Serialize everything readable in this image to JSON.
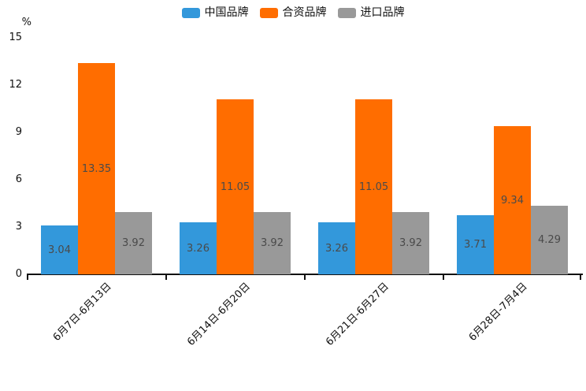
{
  "chart_data": {
    "type": "bar",
    "title": "",
    "unit_label": "%",
    "categories": [
      "6月7日-6月13日",
      "6月14日-6月20日",
      "6月21日-6月27日",
      "6月28日-7月4日"
    ],
    "series": [
      {
        "name": "中国品牌",
        "color": "#3398DB",
        "values": [
          3.04,
          3.26,
          3.26,
          3.71
        ]
      },
      {
        "name": "合资品牌",
        "color": "#FF6D00",
        "values": [
          13.35,
          11.05,
          11.05,
          9.34
        ]
      },
      {
        "name": "进口品牌",
        "color": "#999999",
        "values": [
          3.92,
          3.92,
          3.92,
          4.29
        ]
      }
    ],
    "yticks": [
      0,
      3,
      6,
      9,
      12,
      15
    ],
    "ylim": [
      0,
      15
    ],
    "xlabel": "",
    "ylabel": "%",
    "legend_position": "top",
    "grid": false,
    "value_labels": "inside-center",
    "value_decimals": 2,
    "axis_color": "#111111",
    "label_color": "#4a4a4a"
  }
}
